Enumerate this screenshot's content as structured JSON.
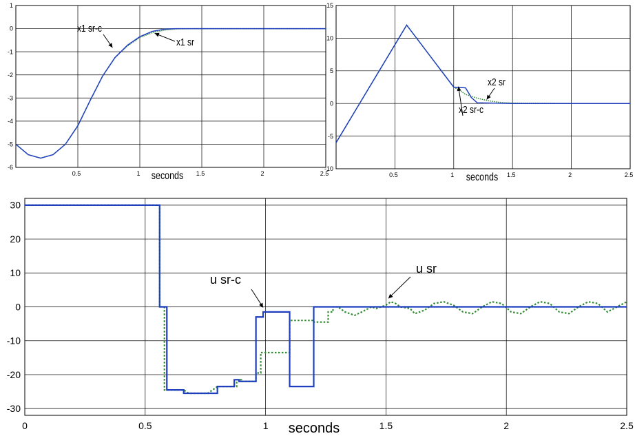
{
  "chart_data": [
    {
      "type": "line",
      "xlabel": "seconds",
      "xlim": [
        0,
        2.5
      ],
      "ylim": [
        -6,
        1
      ],
      "xticks": [
        0.5,
        1,
        1.5,
        2,
        2.5
      ],
      "xtick_labels": [
        "0.5",
        "1",
        "1.5",
        "2",
        "2.5"
      ],
      "yticks": [
        1,
        0,
        -1,
        -2,
        -3,
        -4,
        -5,
        -6
      ],
      "ytick_labels": [
        "1",
        "0",
        "-1",
        "-2",
        "-3",
        "-4",
        "-5",
        "-6"
      ],
      "grid": true,
      "series": [
        {
          "name": "x1 sr",
          "color": "#2e8b2e",
          "style": "dotted",
          "x": [
            0,
            0.1,
            0.2,
            0.3,
            0.4,
            0.5,
            0.6,
            0.7,
            0.8,
            0.9,
            1.0,
            1.1,
            1.2,
            1.3,
            1.5,
            1.7,
            2.0,
            2.5
          ],
          "y": [
            -5.0,
            -5.45,
            -5.6,
            -5.45,
            -5.0,
            -4.2,
            -3.1,
            -2.05,
            -1.25,
            -0.75,
            -0.38,
            -0.18,
            -0.06,
            -0.01,
            0,
            0,
            0,
            0
          ]
        },
        {
          "name": "x1 sr-c",
          "color": "#1f3fbf",
          "style": "solid",
          "x": [
            0,
            0.1,
            0.2,
            0.3,
            0.4,
            0.5,
            0.6,
            0.7,
            0.8,
            0.9,
            1.0,
            1.1,
            1.2,
            1.3,
            1.5,
            1.7,
            2.0,
            2.5
          ],
          "y": [
            -5.0,
            -5.45,
            -5.6,
            -5.45,
            -5.0,
            -4.2,
            -3.1,
            -2.05,
            -1.25,
            -0.72,
            -0.35,
            -0.12,
            -0.02,
            0,
            0,
            0,
            0,
            0
          ]
        }
      ],
      "annotations": [
        {
          "text": "x1 sr-c",
          "target": [
            0.78,
            -0.82
          ]
        },
        {
          "text": "x1 sr",
          "target": [
            1.12,
            -0.2
          ]
        }
      ]
    },
    {
      "type": "line",
      "xlabel": "seconds",
      "xlim": [
        0,
        2.5
      ],
      "ylim": [
        -10,
        15
      ],
      "xticks": [
        0.5,
        1,
        1.5,
        2,
        2.5
      ],
      "xtick_labels": [
        "0.5",
        "1",
        "1.5",
        "2",
        "2.5"
      ],
      "yticks": [
        15,
        10,
        5,
        0,
        -5,
        -10
      ],
      "ytick_labels": [
        "15",
        "10",
        "5",
        "0",
        "-5",
        "-10"
      ],
      "grid": true,
      "series": [
        {
          "name": "x2 sr",
          "color": "#2e8b2e",
          "style": "dotted",
          "x": [
            0,
            0.6,
            1.0,
            1.05,
            1.1,
            1.2,
            1.3,
            1.4,
            1.5,
            2.0,
            2.5
          ],
          "y": [
            -6,
            12,
            2.5,
            2.0,
            1.4,
            0.8,
            0.4,
            0.15,
            0.05,
            0,
            0
          ]
        },
        {
          "name": "x2 sr-c",
          "color": "#1f3fbf",
          "style": "solid",
          "x": [
            0,
            0.6,
            1.0,
            1.1,
            1.15,
            1.2,
            1.5,
            2.0,
            2.5
          ],
          "y": [
            -6,
            12,
            2.5,
            2.4,
            0.9,
            0.1,
            0,
            0,
            0
          ]
        }
      ],
      "annotations": [
        {
          "text": "x2 sr-c",
          "target": [
            1.04,
            2.6
          ]
        },
        {
          "text": "x2 sr",
          "target": [
            1.28,
            0.6
          ]
        }
      ]
    },
    {
      "type": "line",
      "xlabel": "seconds",
      "xlim": [
        0,
        2.5
      ],
      "ylim": [
        -32,
        32
      ],
      "xticks": [
        0,
        0.5,
        1,
        1.5,
        2,
        2.5
      ],
      "xtick_labels": [
        "0",
        "0.5",
        "1",
        "1.5",
        "2",
        "2.5"
      ],
      "yticks": [
        30,
        20,
        10,
        0,
        -10,
        -20,
        -30
      ],
      "ytick_labels": [
        "30",
        "20",
        "10",
        "0",
        "-10",
        "-20",
        "-30"
      ],
      "grid": true,
      "series": [
        {
          "name": "u sr",
          "color": "#2e8b2e",
          "style": "dotted",
          "x": [
            0,
            0.56,
            0.56,
            0.58,
            0.58,
            0.62,
            0.62,
            0.66,
            0.68,
            0.72,
            0.76,
            0.8,
            0.8,
            0.84,
            0.88,
            0.88,
            0.9,
            0.9,
            0.94,
            0.96,
            0.96,
            0.98,
            0.98,
            1.1,
            1.1,
            1.2,
            1.2,
            1.26,
            1.26,
            1.28,
            1.28,
            1.3,
            1.33,
            1.37,
            1.4,
            1.44,
            1.46,
            1.48,
            1.5,
            1.52,
            1.54,
            1.56,
            1.6,
            1.62,
            1.66,
            1.7,
            1.74,
            1.78,
            1.82,
            1.86,
            1.9,
            1.94,
            1.98,
            2.02,
            2.06,
            2.1,
            2.14,
            2.18,
            2.22,
            2.26,
            2.3,
            2.34,
            2.38,
            2.42,
            2.46,
            2.5
          ],
          "y": [
            30,
            30,
            0,
            0,
            -24.5,
            -24.5,
            -24.5,
            -24.5,
            -25.5,
            -25.5,
            -25.5,
            -23.5,
            -23.5,
            -23.5,
            -23.5,
            -21.5,
            -21.5,
            -22,
            -22,
            -22,
            -19.5,
            -19.5,
            -13.5,
            -13.5,
            -4,
            -4,
            -4.5,
            -4.5,
            -1.5,
            -1.5,
            0,
            0,
            -1.5,
            -2.5,
            -1.5,
            0,
            -0.5,
            0,
            0.5,
            1.5,
            1,
            0,
            -0.5,
            -2,
            -1,
            1,
            1.5,
            0.5,
            -1.5,
            -2,
            0,
            1.5,
            1,
            -1.5,
            -2,
            0,
            1.5,
            1,
            -1.5,
            -2,
            0,
            1.5,
            1,
            -1.5,
            0,
            1.5
          ]
        },
        {
          "name": "u sr-c",
          "color": "#1f3fbf",
          "style": "solid",
          "x": [
            0,
            0.56,
            0.56,
            0.59,
            0.59,
            0.66,
            0.66,
            0.76,
            0.76,
            0.8,
            0.8,
            0.87,
            0.87,
            0.89,
            0.89,
            0.96,
            0.96,
            0.99,
            0.99,
            1.1,
            1.1,
            1.2,
            1.2,
            2.5
          ],
          "y": [
            30,
            30,
            0,
            0,
            -24.5,
            -24.5,
            -25.5,
            -25.5,
            -25.5,
            -25.5,
            -23.5,
            -23.5,
            -21.5,
            -21.5,
            -22,
            -22,
            -3,
            -3,
            -1.5,
            -1.5,
            -23.5,
            -23.5,
            0,
            0
          ]
        }
      ],
      "annotations": [
        {
          "text": "u sr-c",
          "target": [
            0.99,
            -0.2
          ]
        },
        {
          "text": "u sr",
          "target": [
            1.51,
            2.5
          ]
        }
      ]
    }
  ]
}
